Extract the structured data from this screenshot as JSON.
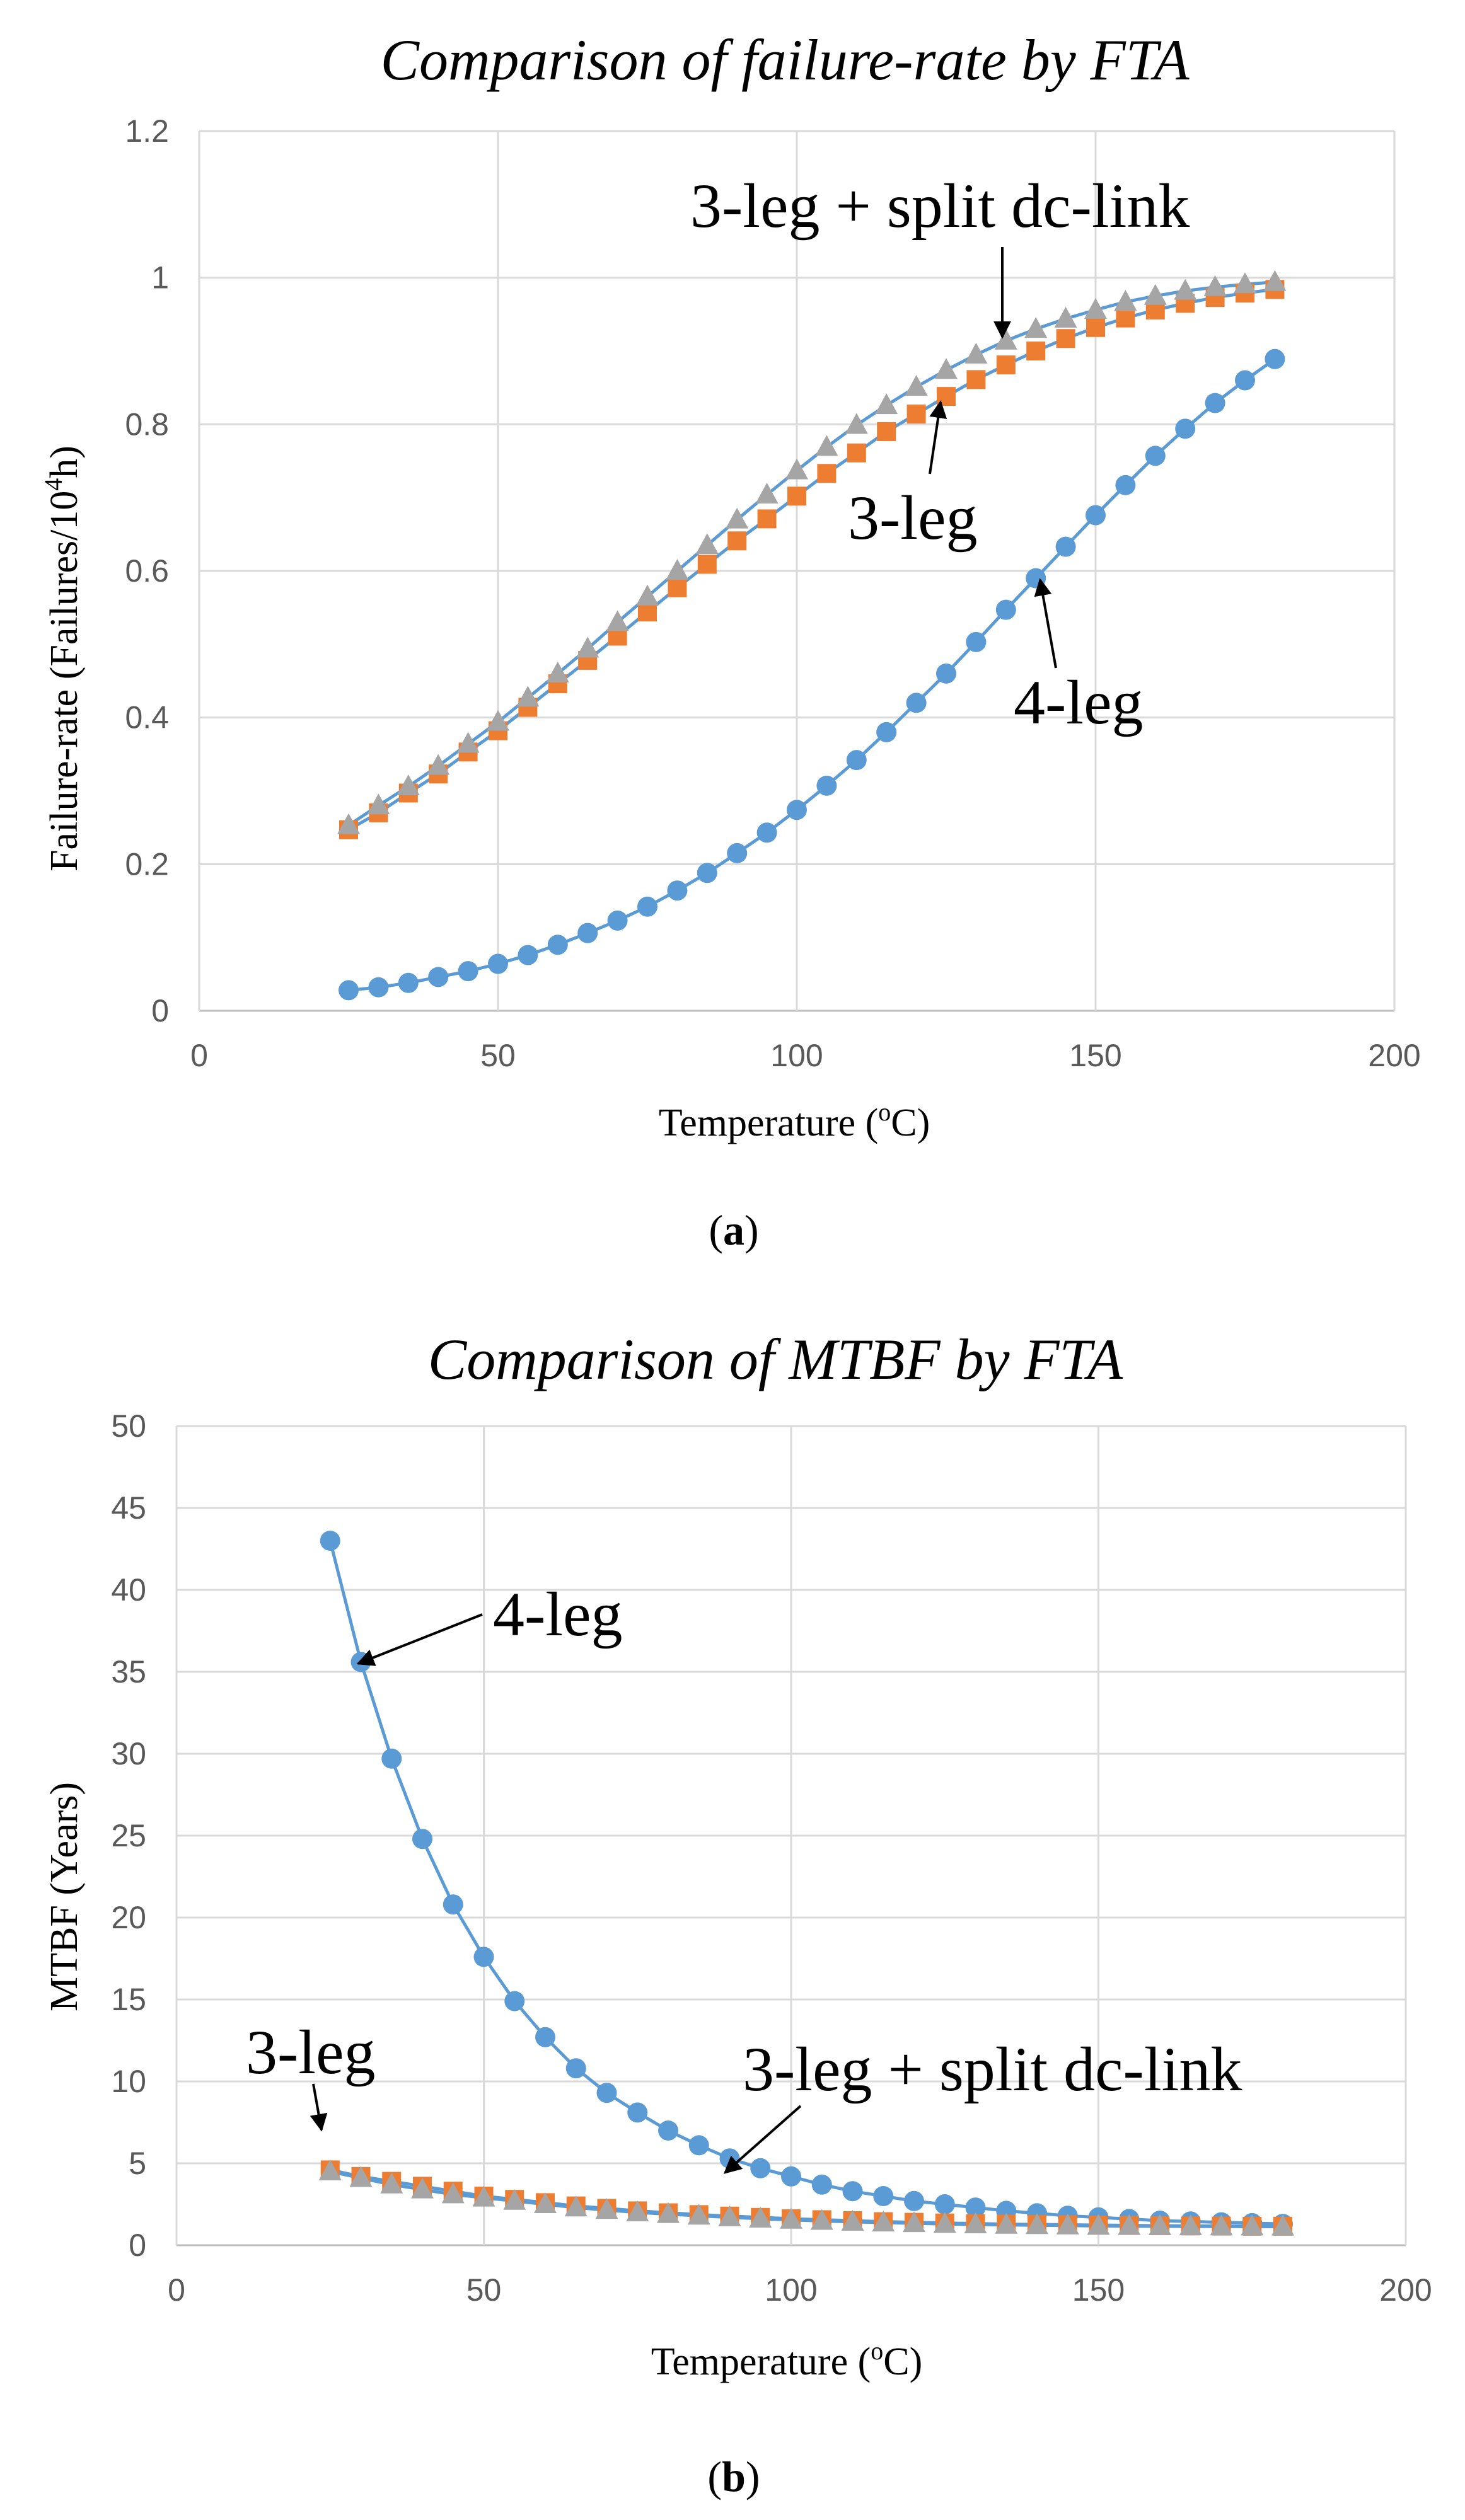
{
  "figure": {
    "panel_a_label": "a",
    "panel_b_label": "b"
  },
  "colors": {
    "four_leg": "#5b9bd5",
    "three_leg": "#ed7d31",
    "split": "#a5a5a5",
    "line": "#5b9bd5"
  },
  "chart_data": [
    {
      "type": "line",
      "title": "Comparison of failure-rate by FTA",
      "xlabel": "Temperature (oC)",
      "ylabel": "Failure-rate (Failures/10^4h)",
      "xlabel_parts": {
        "pre": "Temperature (",
        "sup": "o",
        "post": "C)"
      },
      "ylabel_parts": {
        "pre": "Failure-rate (Failures/10",
        "sup": "4",
        "post": "h)"
      },
      "xlim": [
        0,
        200
      ],
      "ylim": [
        0,
        1.2
      ],
      "xticks": [
        0,
        50,
        100,
        150,
        200
      ],
      "yticks": [
        0,
        0.2,
        0.4,
        0.6,
        0.8,
        1,
        1.2
      ],
      "ytick_labels": [
        "0",
        "0.2",
        "0.4",
        "0.6",
        "0.8",
        "1",
        "1.2"
      ],
      "grid": true,
      "x": [
        25,
        30,
        35,
        40,
        45,
        50,
        55,
        60,
        65,
        70,
        75,
        80,
        85,
        90,
        95,
        100,
        105,
        110,
        115,
        120,
        125,
        130,
        135,
        140,
        145,
        150,
        155,
        160,
        165,
        170,
        175,
        180
      ],
      "series": [
        {
          "name": "4-leg",
          "marker": "circle",
          "values": [
            0.028,
            0.032,
            0.038,
            0.046,
            0.054,
            0.064,
            0.076,
            0.09,
            0.106,
            0.123,
            0.142,
            0.164,
            0.188,
            0.215,
            0.243,
            0.274,
            0.307,
            0.342,
            0.38,
            0.42,
            0.46,
            0.503,
            0.547,
            0.59,
            0.633,
            0.676,
            0.717,
            0.757,
            0.794,
            0.829,
            0.86,
            0.889
          ]
        },
        {
          "name": "3-leg",
          "marker": "square",
          "values": [
            0.247,
            0.27,
            0.297,
            0.323,
            0.353,
            0.382,
            0.414,
            0.446,
            0.478,
            0.511,
            0.544,
            0.577,
            0.609,
            0.641,
            0.671,
            0.702,
            0.733,
            0.761,
            0.79,
            0.814,
            0.838,
            0.861,
            0.881,
            0.9,
            0.917,
            0.932,
            0.945,
            0.956,
            0.965,
            0.973,
            0.979,
            0.984
          ]
        },
        {
          "name": "3-leg + split dc-link",
          "marker": "triangle",
          "values": [
            0.253,
            0.28,
            0.306,
            0.334,
            0.364,
            0.394,
            0.427,
            0.46,
            0.494,
            0.53,
            0.565,
            0.6,
            0.635,
            0.67,
            0.704,
            0.737,
            0.769,
            0.799,
            0.826,
            0.851,
            0.874,
            0.895,
            0.914,
            0.93,
            0.944,
            0.956,
            0.967,
            0.975,
            0.982,
            0.987,
            0.991,
            0.994
          ]
        }
      ],
      "annotations": [
        "3-leg + split dc-link",
        "3-leg",
        "4-leg"
      ]
    },
    {
      "type": "line",
      "title": "Comparison of MTBF by FTA",
      "xlabel": "Temperature (oC)",
      "ylabel": "MTBF (Years)",
      "xlabel_parts": {
        "pre": "Temperature (",
        "sup": "o",
        "post": "C)"
      },
      "xlim": [
        0,
        200
      ],
      "ylim": [
        0,
        50
      ],
      "xticks": [
        0,
        50,
        100,
        150,
        200
      ],
      "yticks": [
        0,
        5,
        10,
        15,
        20,
        25,
        30,
        35,
        40,
        45,
        50
      ],
      "ytick_labels": [
        "0",
        "5",
        "10",
        "15",
        "20",
        "25",
        "30",
        "35",
        "40",
        "45",
        "50"
      ],
      "grid": true,
      "x": [
        25,
        30,
        35,
        40,
        45,
        50,
        55,
        60,
        65,
        70,
        75,
        80,
        85,
        90,
        95,
        100,
        105,
        110,
        115,
        120,
        125,
        130,
        135,
        140,
        145,
        150,
        155,
        160,
        165,
        170,
        175,
        180
      ],
      "series": [
        {
          "name": "4-leg",
          "marker": "circle",
          "values": [
            43.0,
            35.6,
            29.7,
            24.8,
            20.8,
            17.6,
            14.9,
            12.7,
            10.8,
            9.3,
            8.1,
            7.0,
            6.1,
            5.3,
            4.7,
            4.2,
            3.7,
            3.3,
            3.0,
            2.7,
            2.5,
            2.3,
            2.1,
            1.95,
            1.8,
            1.7,
            1.6,
            1.5,
            1.45,
            1.4,
            1.35,
            1.3
          ]
        },
        {
          "name": "3-leg",
          "marker": "square",
          "values": [
            4.6,
            4.2,
            3.9,
            3.6,
            3.3,
            3.0,
            2.8,
            2.6,
            2.4,
            2.25,
            2.1,
            1.98,
            1.87,
            1.78,
            1.7,
            1.62,
            1.56,
            1.5,
            1.44,
            1.4,
            1.36,
            1.32,
            1.29,
            1.27,
            1.25,
            1.23,
            1.21,
            1.19,
            1.18,
            1.17,
            1.16,
            1.16
          ]
        },
        {
          "name": "3-leg + split dc-link",
          "marker": "triangle",
          "values": [
            4.5,
            4.1,
            3.7,
            3.4,
            3.1,
            2.9,
            2.7,
            2.5,
            2.3,
            2.15,
            2.0,
            1.9,
            1.8,
            1.7,
            1.62,
            1.55,
            1.48,
            1.43,
            1.38,
            1.34,
            1.3,
            1.27,
            1.24,
            1.22,
            1.2,
            1.18,
            1.17,
            1.16,
            1.15,
            1.14,
            1.14,
            1.13
          ]
        }
      ],
      "annotations": [
        "4-leg",
        "3-leg",
        "3-leg + split dc-link"
      ]
    }
  ]
}
